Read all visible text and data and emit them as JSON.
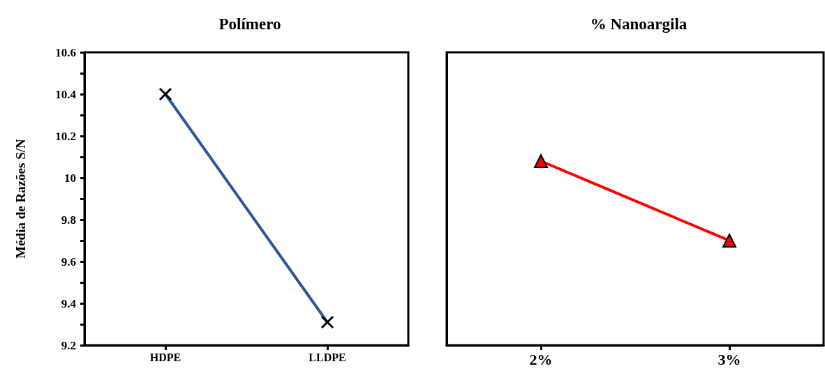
{
  "chart_data": [
    {
      "type": "line",
      "title": "Polímero",
      "ylabel": "Média de Razões S/N",
      "categories": [
        "HDPE",
        "LLDPE"
      ],
      "series": [
        {
          "color": "#2e5597",
          "values": [
            10.4,
            9.31
          ]
        }
      ],
      "ylim": [
        9.2,
        10.6
      ],
      "yticks": [
        9.2,
        {
          "value": 9.3,
          "label": null
        },
        9.4,
        {
          "value": 9.5,
          "label": null
        },
        9.6,
        {
          "value": 9.7,
          "label": null
        },
        9.8,
        {
          "value": 9.9,
          "label": null
        },
        10,
        {
          "value": 10.1,
          "label": null
        },
        10.2,
        {
          "value": 10.3,
          "label": null
        },
        10.4,
        {
          "value": 10.5,
          "label": null
        },
        10.6
      ],
      "marker": "cross",
      "grid": false
    },
    {
      "type": "line",
      "title": "% Nanoargila",
      "categories": [
        "2%",
        "3%"
      ],
      "series": [
        {
          "color": "#ff0000",
          "values": [
            10.08,
            9.7
          ]
        }
      ],
      "ylim": [
        9.2,
        10.6
      ],
      "tick_labels": "x",
      "marker": "triangle",
      "grid": false
    }
  ]
}
